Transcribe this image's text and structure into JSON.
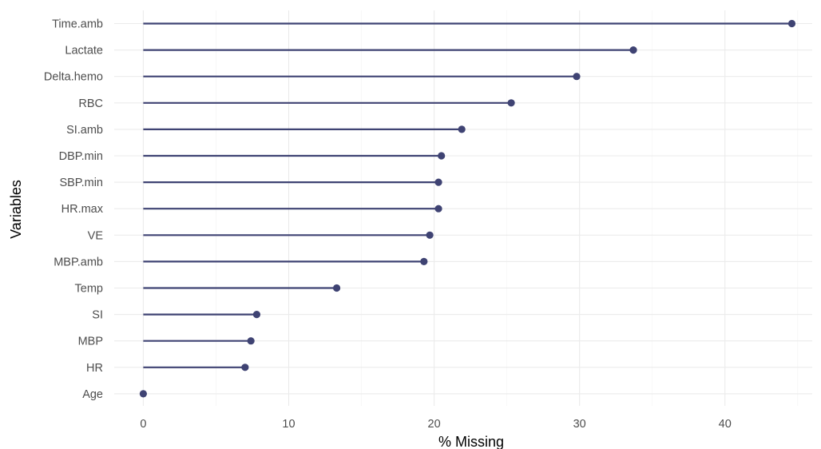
{
  "chart_data": {
    "type": "lollipop",
    "xlabel": "% Missing",
    "ylabel": "Variables",
    "xlim": [
      -2.0,
      46.0
    ],
    "x_ticks": [
      0,
      10,
      20,
      30,
      40
    ],
    "grid": true,
    "legend": "none",
    "colors": {
      "series": "#3f4373",
      "grid": "#ebebeb",
      "text": "#4d4d4d"
    },
    "categories": [
      "Time.amb",
      "Lactate",
      "Delta.hemo",
      "RBC",
      "SI.amb",
      "DBP.min",
      "SBP.min",
      "HR.max",
      "VE",
      "MBP.amb",
      "Temp",
      "SI",
      "MBP",
      "HR",
      "Age"
    ],
    "values": [
      44.6,
      33.7,
      29.8,
      25.3,
      21.9,
      20.5,
      20.3,
      20.3,
      19.7,
      19.3,
      13.3,
      7.8,
      7.4,
      7.0,
      0.0
    ]
  }
}
